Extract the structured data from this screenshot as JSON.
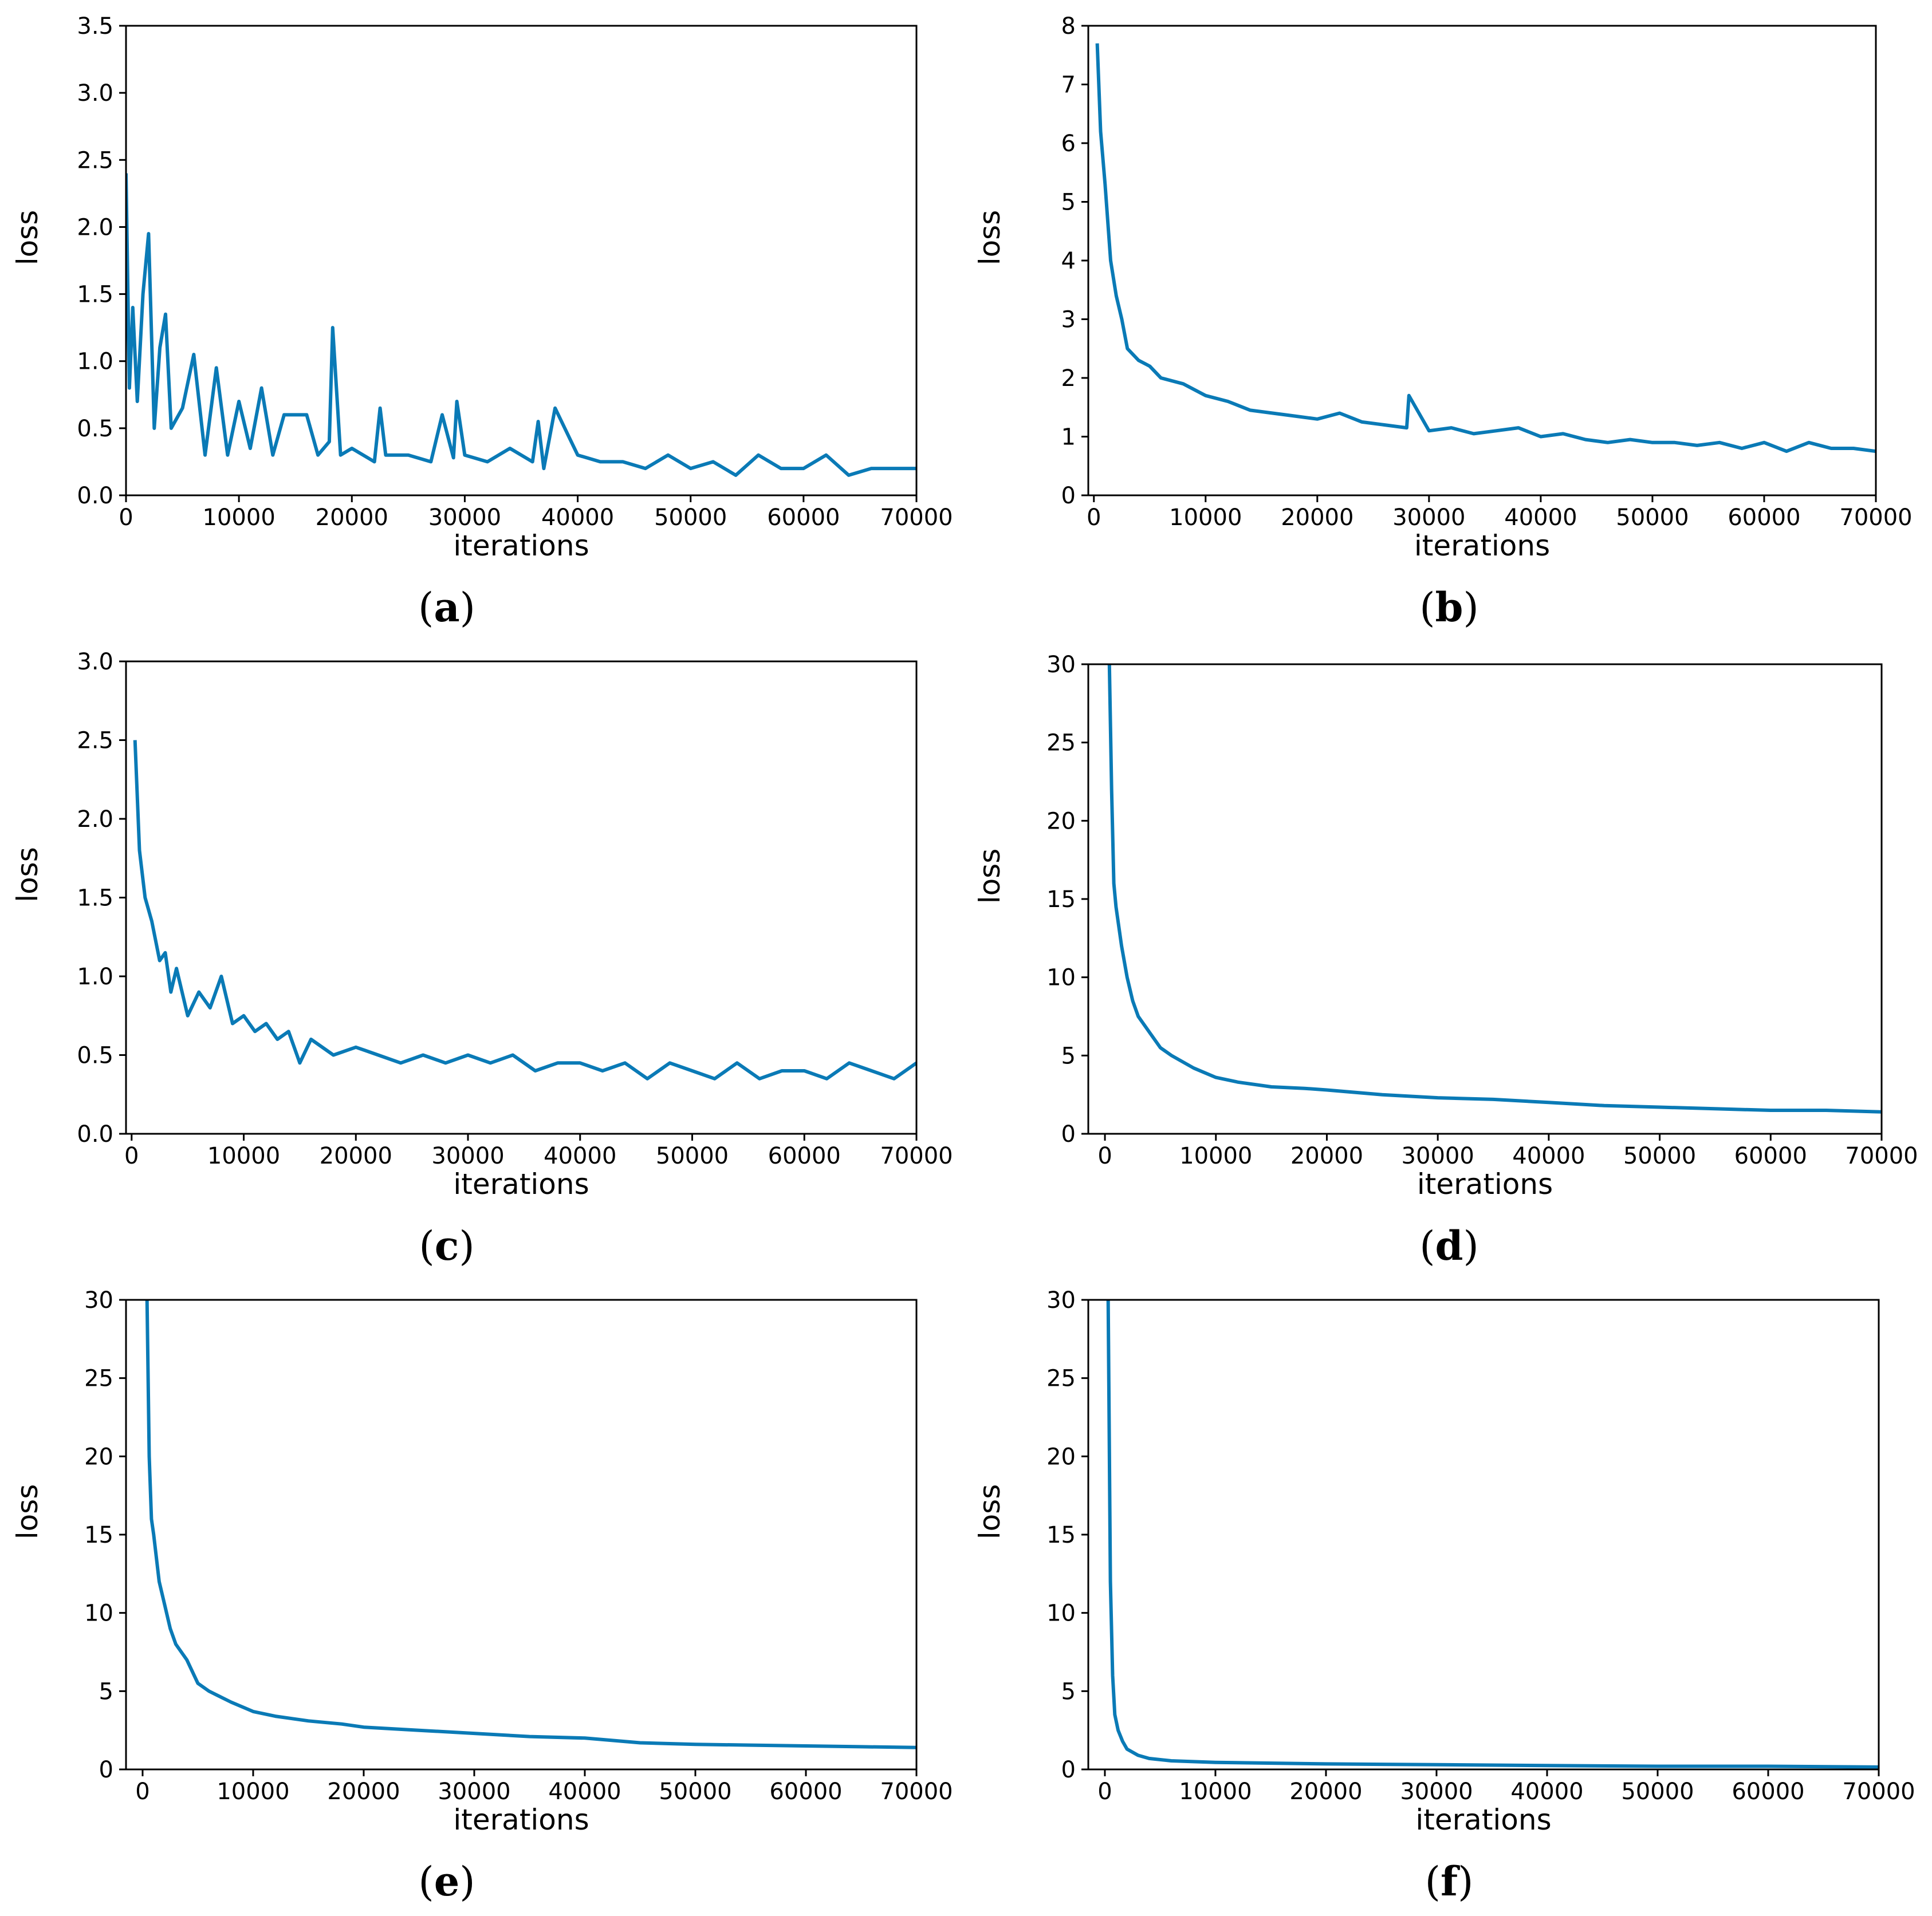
{
  "figure": {
    "line_color": "#0a7ab6"
  },
  "chart_data": [
    {
      "id": "a",
      "caption_letter": "a",
      "type": "line",
      "xlabel": "iterations",
      "ylabel": "loss",
      "xlim": [
        0,
        70000
      ],
      "ylim": [
        0,
        3.5
      ],
      "xticks": [
        0,
        10000,
        20000,
        30000,
        40000,
        50000,
        60000,
        70000
      ],
      "yticks": [
        0.0,
        0.5,
        1.0,
        1.5,
        2.0,
        2.5,
        3.0,
        3.5
      ],
      "ytick_labels": [
        "0.0",
        "0.5",
        "1.0",
        "1.5",
        "2.0",
        "2.5",
        "3.0",
        "3.5"
      ],
      "series": [
        {
          "name": "loss",
          "x": [
            0,
            300,
            600,
            1000,
            1500,
            2000,
            2500,
            3000,
            3500,
            4000,
            5000,
            6000,
            7000,
            8000,
            9000,
            10000,
            11000,
            12000,
            13000,
            14000,
            16000,
            17000,
            18000,
            18300,
            19000,
            20000,
            22000,
            22500,
            23000,
            25000,
            27000,
            28000,
            29000,
            29300,
            30000,
            32000,
            34000,
            36000,
            36500,
            37000,
            38000,
            40000,
            42000,
            44000,
            46000,
            48000,
            50000,
            52000,
            54000,
            56000,
            58000,
            60000,
            62000,
            64000,
            66000,
            68000,
            70000
          ],
          "y": [
            2.4,
            0.8,
            1.4,
            0.7,
            1.5,
            1.95,
            0.5,
            1.1,
            1.35,
            0.5,
            0.65,
            1.05,
            0.3,
            0.95,
            0.3,
            0.7,
            0.35,
            0.8,
            0.3,
            0.6,
            0.6,
            0.3,
            0.4,
            1.25,
            0.3,
            0.35,
            0.25,
            0.65,
            0.3,
            0.3,
            0.25,
            0.6,
            0.28,
            0.7,
            0.3,
            0.25,
            0.35,
            0.25,
            0.55,
            0.2,
            0.65,
            0.3,
            0.25,
            0.25,
            0.2,
            0.3,
            0.2,
            0.25,
            0.15,
            0.3,
            0.2,
            0.2,
            0.3,
            0.15,
            0.2,
            0.2,
            0.2
          ]
        }
      ]
    },
    {
      "id": "b",
      "caption_letter": "b",
      "type": "line",
      "xlabel": "iterations",
      "ylabel": "loss",
      "xlim": [
        -500,
        70000
      ],
      "ylim": [
        0,
        8
      ],
      "xticks": [
        0,
        10000,
        20000,
        30000,
        40000,
        50000,
        60000,
        70000
      ],
      "yticks": [
        0,
        1,
        2,
        3,
        4,
        5,
        6,
        7,
        8
      ],
      "ytick_labels": [
        "0",
        "1",
        "2",
        "3",
        "4",
        "5",
        "6",
        "7",
        "8"
      ],
      "series": [
        {
          "name": "loss",
          "x": [
            300,
            600,
            1000,
            1500,
            2000,
            2500,
            3000,
            4000,
            5000,
            6000,
            8000,
            10000,
            12000,
            14000,
            16000,
            18000,
            20000,
            22000,
            24000,
            26000,
            28000,
            28200,
            30000,
            32000,
            34000,
            36000,
            38000,
            40000,
            42000,
            44000,
            46000,
            48000,
            50000,
            52000,
            54000,
            56000,
            58000,
            60000,
            62000,
            64000,
            66000,
            68000,
            70000
          ],
          "y": [
            7.7,
            6.2,
            5.3,
            4.0,
            3.4,
            3.0,
            2.5,
            2.3,
            2.2,
            2.0,
            1.9,
            1.7,
            1.6,
            1.45,
            1.4,
            1.35,
            1.3,
            1.4,
            1.25,
            1.2,
            1.15,
            1.7,
            1.1,
            1.15,
            1.05,
            1.1,
            1.15,
            1.0,
            1.05,
            0.95,
            0.9,
            0.95,
            0.9,
            0.9,
            0.85,
            0.9,
            0.8,
            0.9,
            0.75,
            0.9,
            0.8,
            0.8,
            0.75
          ]
        }
      ]
    },
    {
      "id": "c",
      "caption_letter": "c",
      "type": "line",
      "xlabel": "iterations",
      "ylabel": "loss",
      "xlim": [
        -500,
        70000
      ],
      "ylim": [
        0,
        3.0
      ],
      "xticks": [
        0,
        10000,
        20000,
        30000,
        40000,
        50000,
        60000,
        70000
      ],
      "yticks": [
        0.0,
        0.5,
        1.0,
        1.5,
        2.0,
        2.5,
        3.0
      ],
      "ytick_labels": [
        "0.0",
        "0.5",
        "1.0",
        "1.5",
        "2.0",
        "2.5",
        "3.0"
      ],
      "series": [
        {
          "name": "loss",
          "x": [
            300,
            700,
            1200,
            1800,
            2500,
            3000,
            3500,
            4000,
            5000,
            6000,
            7000,
            8000,
            9000,
            10000,
            11000,
            12000,
            13000,
            14000,
            15000,
            16000,
            18000,
            20000,
            22000,
            24000,
            26000,
            28000,
            30000,
            32000,
            34000,
            36000,
            38000,
            40000,
            42000,
            44000,
            46000,
            48000,
            50000,
            52000,
            54000,
            56000,
            58000,
            60000,
            62000,
            64000,
            66000,
            68000,
            70000
          ],
          "y": [
            2.5,
            1.8,
            1.5,
            1.35,
            1.1,
            1.15,
            0.9,
            1.05,
            0.75,
            0.9,
            0.8,
            1.0,
            0.7,
            0.75,
            0.65,
            0.7,
            0.6,
            0.65,
            0.45,
            0.6,
            0.5,
            0.55,
            0.5,
            0.45,
            0.5,
            0.45,
            0.5,
            0.45,
            0.5,
            0.4,
            0.45,
            0.45,
            0.4,
            0.45,
            0.35,
            0.45,
            0.4,
            0.35,
            0.45,
            0.35,
            0.4,
            0.4,
            0.35,
            0.45,
            0.4,
            0.35,
            0.45
          ]
        }
      ]
    },
    {
      "id": "d",
      "caption_letter": "d",
      "type": "line",
      "xlabel": "iterations",
      "ylabel": "loss",
      "xlim": [
        -1500,
        70000
      ],
      "ylim": [
        0,
        30
      ],
      "xticks": [
        0,
        10000,
        20000,
        30000,
        40000,
        50000,
        60000,
        70000
      ],
      "yticks": [
        0,
        5,
        10,
        15,
        20,
        25,
        30
      ],
      "ytick_labels": [
        "0",
        "5",
        "10",
        "15",
        "20",
        "25",
        "30"
      ],
      "series": [
        {
          "name": "loss",
          "x": [
            400,
            600,
            800,
            1000,
            1500,
            2000,
            2500,
            3000,
            4000,
            5000,
            6000,
            8000,
            10000,
            12000,
            15000,
            18000,
            20000,
            25000,
            30000,
            35000,
            40000,
            45000,
            50000,
            55000,
            60000,
            65000,
            70000
          ],
          "y": [
            30,
            22,
            16,
            14.5,
            12,
            10,
            8.5,
            7.5,
            6.5,
            5.5,
            5.0,
            4.2,
            3.6,
            3.3,
            3.0,
            2.9,
            2.8,
            2.5,
            2.3,
            2.2,
            2.0,
            1.8,
            1.7,
            1.6,
            1.5,
            1.5,
            1.4
          ]
        }
      ]
    },
    {
      "id": "e",
      "caption_letter": "e",
      "type": "line",
      "xlabel": "iterations",
      "ylabel": "loss",
      "xlim": [
        -1500,
        70000
      ],
      "ylim": [
        0,
        30
      ],
      "xticks": [
        0,
        10000,
        20000,
        30000,
        40000,
        50000,
        60000,
        70000
      ],
      "yticks": [
        0,
        5,
        10,
        15,
        20,
        25,
        30
      ],
      "ytick_labels": [
        "0",
        "5",
        "10",
        "15",
        "20",
        "25",
        "30"
      ],
      "series": [
        {
          "name": "loss",
          "x": [
            400,
            600,
            800,
            1000,
            1500,
            2000,
            2500,
            3000,
            4000,
            5000,
            6000,
            8000,
            10000,
            12000,
            15000,
            18000,
            20000,
            25000,
            30000,
            35000,
            40000,
            45000,
            50000,
            55000,
            60000,
            65000,
            70000
          ],
          "y": [
            30,
            20,
            16,
            15,
            12,
            10.5,
            9,
            8,
            7,
            5.5,
            5.0,
            4.3,
            3.7,
            3.4,
            3.1,
            2.9,
            2.7,
            2.5,
            2.3,
            2.1,
            2.0,
            1.7,
            1.6,
            1.55,
            1.5,
            1.45,
            1.4
          ]
        }
      ]
    },
    {
      "id": "f",
      "caption_letter": "f",
      "type": "line",
      "xlabel": "iterations",
      "ylabel": "loss",
      "xlim": [
        -1500,
        70000
      ],
      "ylim": [
        0,
        30
      ],
      "xticks": [
        0,
        10000,
        20000,
        30000,
        40000,
        50000,
        60000,
        70000
      ],
      "yticks": [
        0,
        5,
        10,
        15,
        20,
        25,
        30
      ],
      "ytick_labels": [
        "0",
        "5",
        "10",
        "15",
        "20",
        "25",
        "30"
      ],
      "series": [
        {
          "name": "loss",
          "x": [
            300,
            500,
            700,
            900,
            1200,
            1600,
            2000,
            3000,
            4000,
            6000,
            10000,
            20000,
            30000,
            40000,
            50000,
            60000,
            70000
          ],
          "y": [
            30,
            12,
            6,
            3.5,
            2.5,
            1.8,
            1.3,
            0.9,
            0.7,
            0.55,
            0.45,
            0.35,
            0.3,
            0.25,
            0.2,
            0.2,
            0.15
          ]
        }
      ]
    }
  ]
}
